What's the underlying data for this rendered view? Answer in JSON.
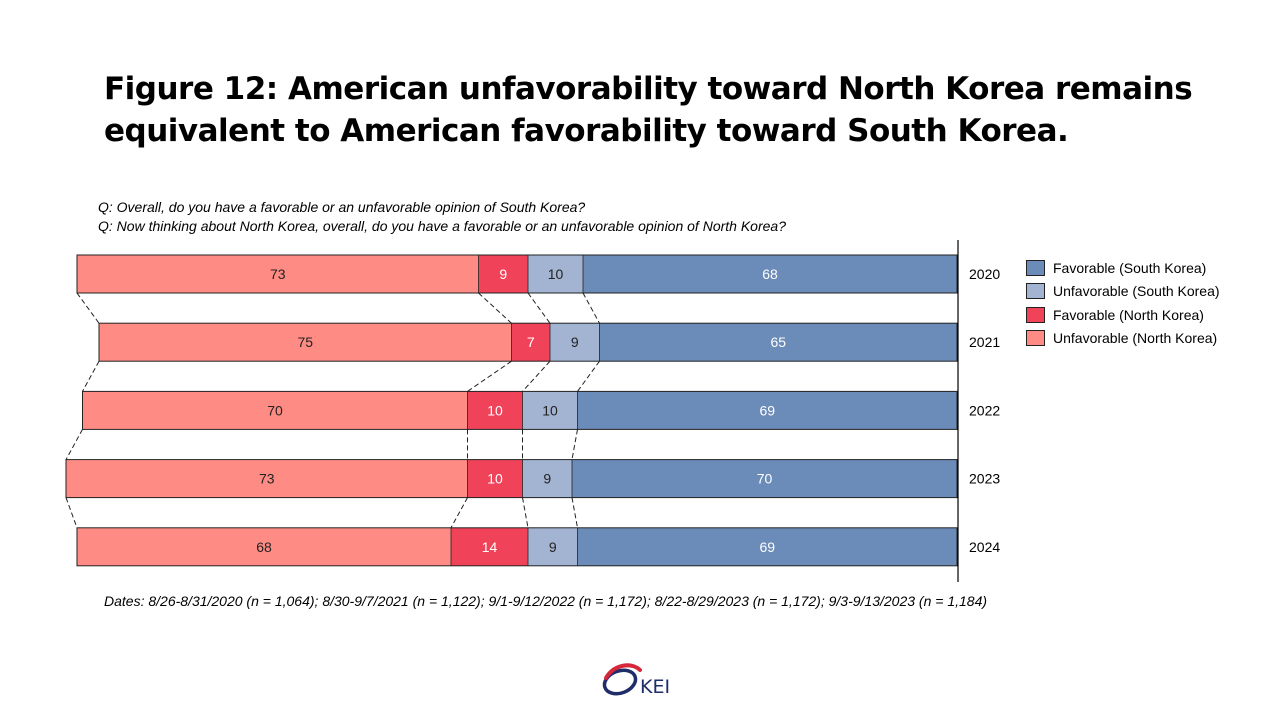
{
  "title_line1": "Figure 12: American unfavorability toward North Korea remains",
  "title_line2": "equivalent to American favorability toward South Korea.",
  "question1": "Q: Overall, do you have a favorable or an unfavorable opinion of South Korea?",
  "question2": "Q: Now thinking about North Korea, overall, do you have a favorable or an unfavorable opinion of North Korea?",
  "footnote": "Dates: 8/26-8/31/2020 (n = 1,064); 8/30-9/7/2021 (n = 1,122); 9/1-9/12/2022 (n = 1,172); 8/22-8/29/2023 (n = 1,172); 9/3-9/13/2023 (n = 1,184)",
  "logo_text": "KEI",
  "chart_data": {
    "type": "bar",
    "orientation": "horizontal-stacked",
    "categories": [
      "2020",
      "2021",
      "2022",
      "2023",
      "2024"
    ],
    "series": [
      {
        "name": "Unfavorable (North Korea)",
        "values": [
          73,
          75,
          70,
          73,
          68
        ],
        "color": "#ff8c84"
      },
      {
        "name": "Favorable (North Korea)",
        "values": [
          9,
          7,
          10,
          10,
          14
        ],
        "color": "#f0435a"
      },
      {
        "name": "Unfavorable (South Korea)",
        "values": [
          10,
          9,
          10,
          9,
          9
        ],
        "color": "#a3b4d3"
      },
      {
        "name": "Favorable (South Korea)",
        "values": [
          68,
          65,
          69,
          70,
          69
        ],
        "color": "#6b8bb8"
      }
    ],
    "legend": [
      {
        "name": "Favorable (South Korea)",
        "color": "#6b8bb8"
      },
      {
        "name": "Unfavorable (South Korea)",
        "color": "#a3b4d3"
      },
      {
        "name": "Favorable (North Korea)",
        "color": "#f0435a"
      },
      {
        "name": "Unfavorable (North Korea)",
        "color": "#ff8c84"
      }
    ],
    "legend_position": "right",
    "data_labels": true,
    "series_lines": "dashed",
    "grid": false
  }
}
